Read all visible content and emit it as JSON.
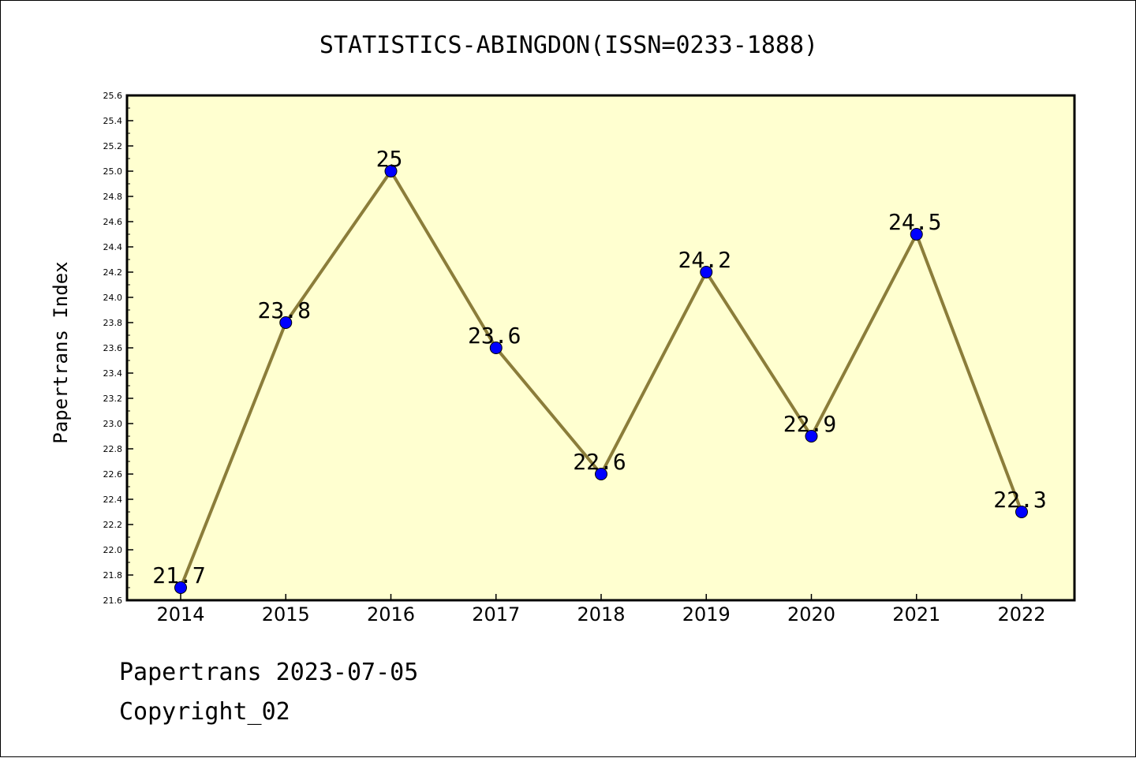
{
  "chart_data": {
    "type": "line",
    "title": "STATISTICS-ABINGDON(ISSN=0233-1888)",
    "xlabel": "",
    "ylabel": "Papertrans Index",
    "categories": [
      "2014",
      "2015",
      "2016",
      "2017",
      "2018",
      "2019",
      "2020",
      "2021",
      "2022"
    ],
    "series": [
      {
        "values": [
          21.7,
          23.8,
          25.0,
          23.6,
          22.6,
          24.2,
          22.9,
          24.5,
          22.3
        ],
        "labels": [
          "21.7",
          "23.8",
          "25",
          "23.6",
          "22.6",
          "24.2",
          "22.9",
          "24.5",
          "22.3"
        ]
      }
    ],
    "ylim": [
      21.6,
      25.6
    ],
    "yticks": [
      "21.6",
      "21.8",
      "22.0",
      "22.2",
      "22.4",
      "22.6",
      "22.8",
      "23.0",
      "23.2",
      "23.4",
      "23.6",
      "23.8",
      "24.0",
      "24.2",
      "24.4",
      "24.6",
      "24.8",
      "25.0",
      "25.2",
      "25.4",
      "25.6"
    ],
    "grid": false,
    "legend": "none",
    "colors": {
      "plot_background": "#ffffd0",
      "line": "#8b7d3a",
      "marker": "#0000ff"
    }
  },
  "footer": {
    "line1": "Papertrans 2023-07-05",
    "line2": "Copyright_02"
  }
}
